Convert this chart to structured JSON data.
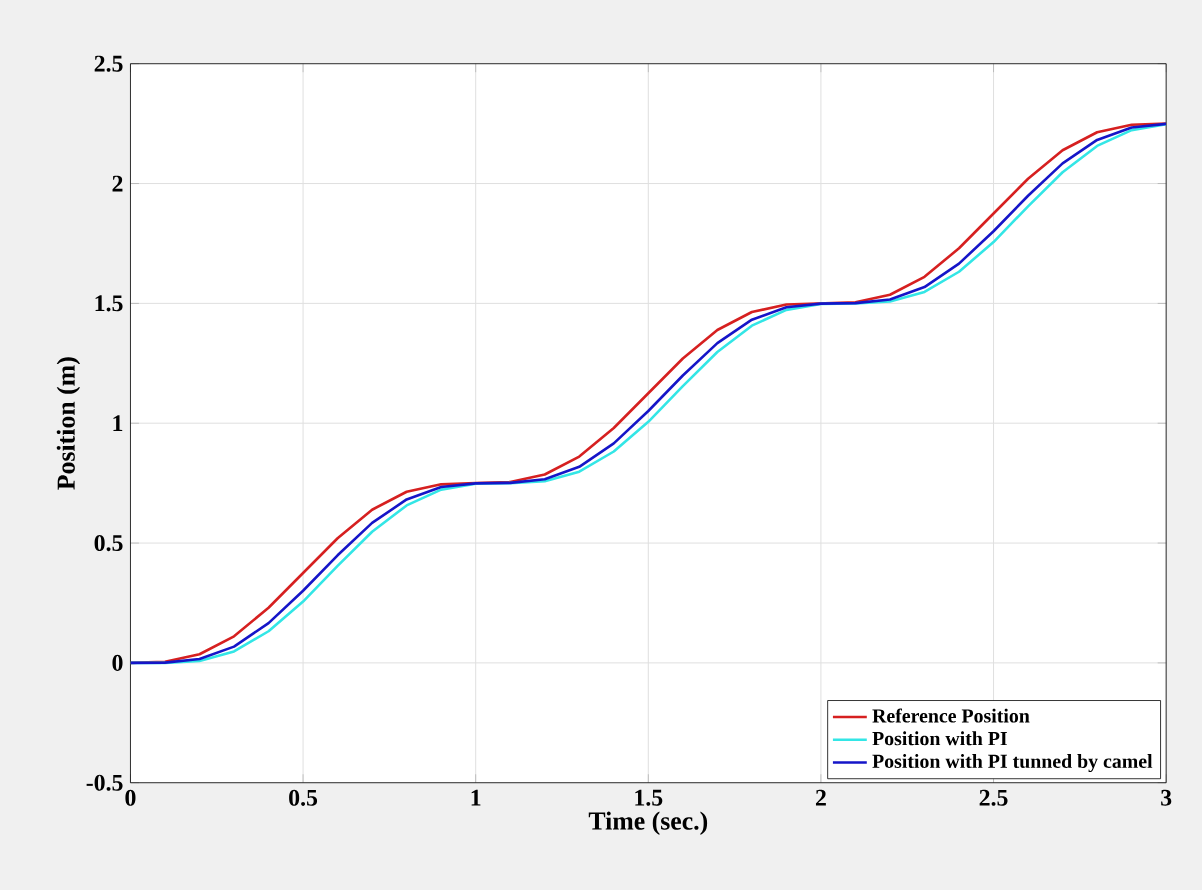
{
  "chart_data": {
    "type": "line",
    "xlabel": "Time (sec.)",
    "ylabel": "Position (m)",
    "x": [
      0,
      0.1,
      0.2,
      0.3,
      0.4,
      0.5,
      0.6,
      0.7,
      0.8,
      0.9,
      1,
      1.1,
      1.2,
      1.3,
      1.4,
      1.5,
      1.6,
      1.7,
      1.8,
      1.9,
      2,
      2.1,
      2.2,
      2.3,
      2.4,
      2.5,
      2.6,
      2.7,
      2.8,
      2.9,
      3
    ],
    "series": [
      {
        "name": "Reference Position",
        "color": "#d62020",
        "values": [
          0,
          0.005,
          0.036,
          0.111,
          0.23,
          0.375,
          0.52,
          0.639,
          0.714,
          0.745,
          0.75,
          0.755,
          0.786,
          0.861,
          0.98,
          1.125,
          1.27,
          1.389,
          1.464,
          1.495,
          1.5,
          1.505,
          1.536,
          1.611,
          1.73,
          1.875,
          2.02,
          2.139,
          2.214,
          2.245,
          2.25
        ]
      },
      {
        "name": "Position with PI",
        "color": "#33e6e6",
        "values": [
          0,
          0,
          0.008,
          0.048,
          0.132,
          0.256,
          0.405,
          0.547,
          0.657,
          0.723,
          0.748,
          0.75,
          0.758,
          0.798,
          0.882,
          1.006,
          1.155,
          1.297,
          1.407,
          1.473,
          1.498,
          1.5,
          1.508,
          1.548,
          1.632,
          1.756,
          1.905,
          2.047,
          2.157,
          2.223,
          2.248
        ]
      },
      {
        "name": "Position with PI tunned by camel",
        "color": "#1515c8",
        "values": [
          0,
          0.001,
          0.016,
          0.068,
          0.166,
          0.301,
          0.449,
          0.584,
          0.682,
          0.734,
          0.749,
          0.751,
          0.766,
          0.818,
          0.916,
          1.051,
          1.199,
          1.334,
          1.432,
          1.484,
          1.499,
          1.501,
          1.516,
          1.568,
          1.666,
          1.801,
          1.949,
          2.084,
          2.182,
          2.234,
          2.249
        ]
      }
    ],
    "xlim": [
      0,
      3
    ],
    "ylim": [
      -0.5,
      2.5
    ],
    "xticks": [
      0,
      0.5,
      1,
      1.5,
      2,
      2.5,
      3
    ],
    "yticks": [
      -0.5,
      0,
      0.5,
      1,
      1.5,
      2,
      2.5
    ],
    "grid": true,
    "legend": "bottom right"
  }
}
